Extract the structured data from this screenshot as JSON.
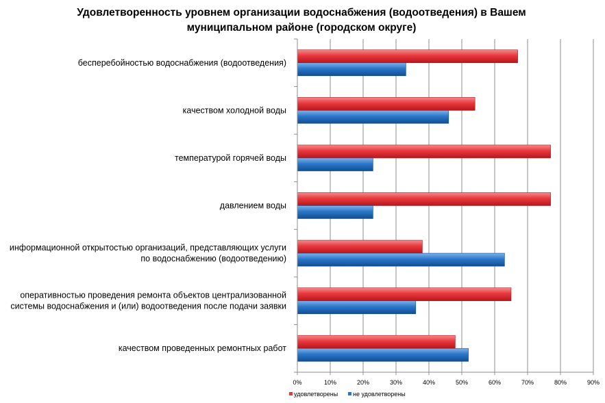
{
  "chart_data": {
    "type": "bar",
    "orientation": "horizontal",
    "title_lines": [
      "Удовлетворенность уровнем организации водоснабжения (водоотведения) в Вашем",
      "муниципальном районе (городском округе)"
    ],
    "categories": [
      [
        "бесперебойностью  водоснабжения (водоотведения)"
      ],
      [
        "качеством холодной воды"
      ],
      [
        "температурой  горячей воды"
      ],
      [
        "давлением воды"
      ],
      [
        "информационной открытостью организаций, представляющих услуги",
        "по водоснабжению (водоотведению)"
      ],
      [
        "оперативностью проведения ремонта  объектов централизованной",
        "системы водоснабжения и (или) водоотведения после подачи заявки"
      ],
      [
        "качеством проведенных ремонтных  работ"
      ]
    ],
    "series": [
      {
        "name": "удовлетворены",
        "color": "#E8383D",
        "values": [
          67,
          54,
          77,
          77,
          38,
          65,
          48
        ]
      },
      {
        "name": "не удовлетворены",
        "color": "#2A77C9",
        "values": [
          33,
          46,
          23,
          23,
          63,
          36,
          52
        ]
      }
    ],
    "x_ticks": [
      "0%",
      "10%",
      "20%",
      "30%",
      "40%",
      "50%",
      "60%",
      "70%",
      "80%",
      "90%"
    ],
    "xlim": [
      0,
      90
    ],
    "grid": true,
    "legend_position": "bottom-center"
  }
}
